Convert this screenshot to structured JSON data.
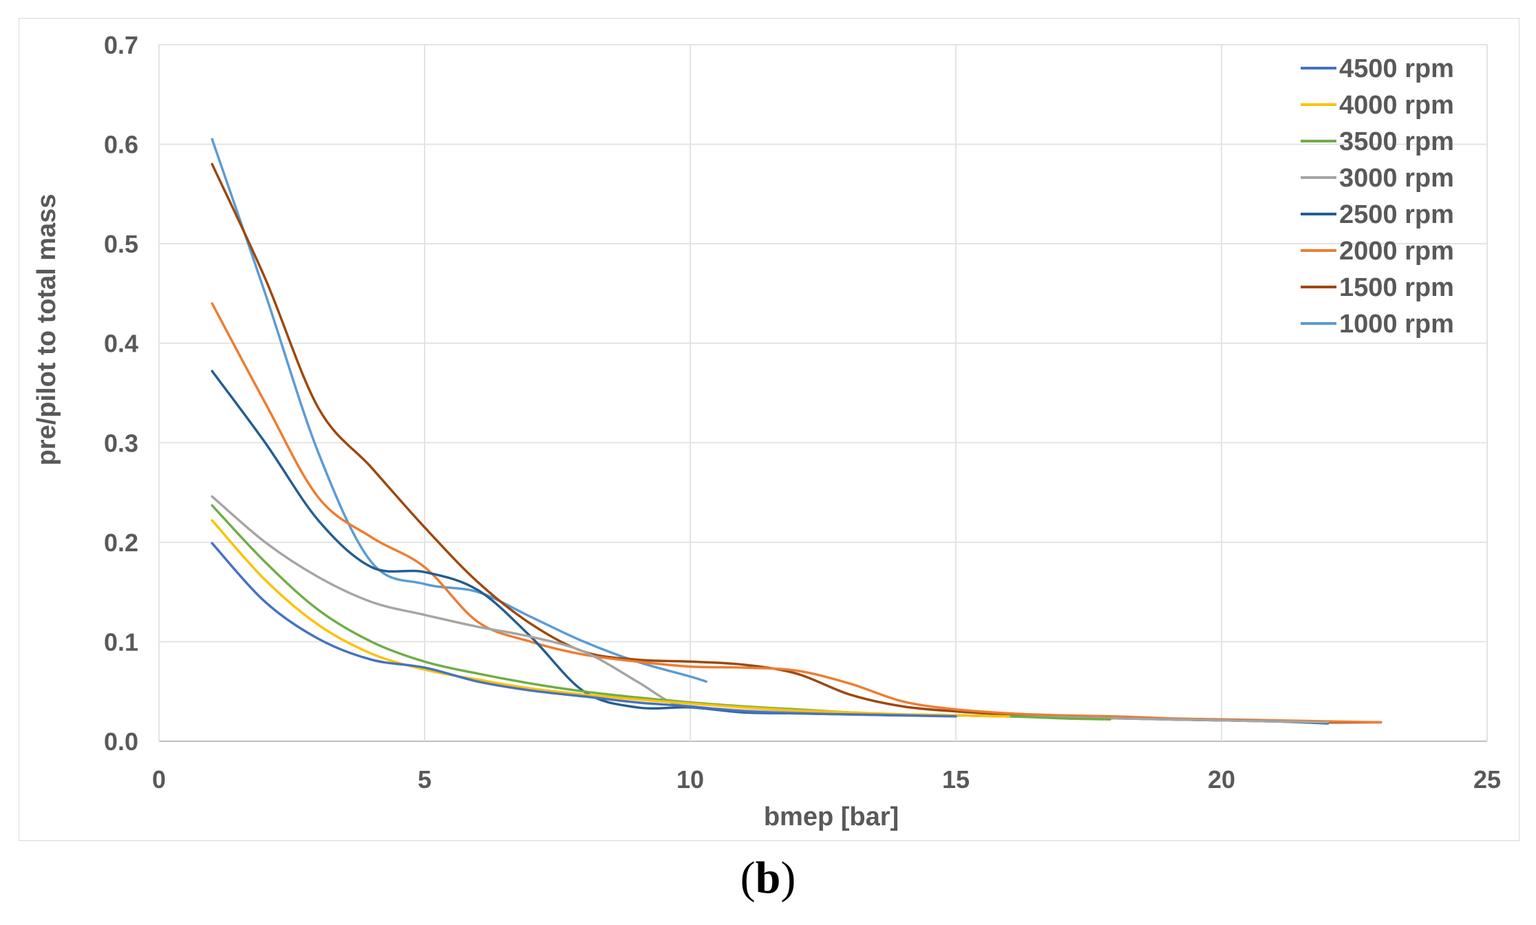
{
  "caption": {
    "open": "(",
    "letter": "b",
    "close": ")"
  },
  "chart_data": {
    "type": "line",
    "xlabel": "bmep [bar]",
    "ylabel": "pre/pilot to total mass",
    "xlim": [
      0,
      25
    ],
    "ylim": [
      0,
      0.7
    ],
    "xticks": [
      0,
      5,
      10,
      15,
      20,
      25
    ],
    "yticks": [
      "0.0",
      "0.1",
      "0.2",
      "0.3",
      "0.4",
      "0.5",
      "0.6",
      "0.7"
    ],
    "grid": true,
    "legend_position": "top-right",
    "series": [
      {
        "name": "4500 rpm",
        "color": "#4472c4",
        "points": [
          [
            1,
            0.199
          ],
          [
            2,
            0.14
          ],
          [
            3,
            0.103
          ],
          [
            4,
            0.082
          ],
          [
            5,
            0.074
          ],
          [
            6,
            0.06
          ],
          [
            7,
            0.051
          ],
          [
            8,
            0.045
          ],
          [
            9,
            0.039
          ],
          [
            10,
            0.035
          ],
          [
            11,
            0.03
          ],
          [
            12,
            0.028
          ],
          [
            13,
            0.027
          ],
          [
            14,
            0.026
          ],
          [
            15,
            0.025
          ]
        ]
      },
      {
        "name": "4000 rpm",
        "color": "#ffc000",
        "points": [
          [
            1,
            0.222
          ],
          [
            2,
            0.162
          ],
          [
            3,
            0.117
          ],
          [
            4,
            0.088
          ],
          [
            5,
            0.072
          ],
          [
            6,
            0.062
          ],
          [
            7,
            0.053
          ],
          [
            8,
            0.047
          ],
          [
            9,
            0.042
          ],
          [
            10,
            0.038
          ],
          [
            11,
            0.034
          ],
          [
            12,
            0.031
          ],
          [
            13,
            0.029
          ],
          [
            14,
            0.027
          ],
          [
            15,
            0.026
          ],
          [
            16,
            0.025
          ]
        ]
      },
      {
        "name": "3500 rpm",
        "color": "#70ad47",
        "points": [
          [
            1,
            0.237
          ],
          [
            2,
            0.18
          ],
          [
            3,
            0.132
          ],
          [
            4,
            0.1
          ],
          [
            5,
            0.08
          ],
          [
            6,
            0.068
          ],
          [
            7,
            0.058
          ],
          [
            8,
            0.05
          ],
          [
            9,
            0.044
          ],
          [
            10,
            0.039
          ],
          [
            11,
            0.035
          ],
          [
            12,
            0.032
          ],
          [
            13,
            0.029
          ],
          [
            14,
            0.027
          ],
          [
            15,
            0.026
          ],
          [
            16,
            0.025
          ],
          [
            17,
            0.023
          ],
          [
            17.9,
            0.022
          ]
        ]
      },
      {
        "name": "3000 rpm",
        "color": "#a5a5a5",
        "points": [
          [
            1,
            0.246
          ],
          [
            2,
            0.2
          ],
          [
            3,
            0.165
          ],
          [
            4,
            0.14
          ],
          [
            5,
            0.127
          ],
          [
            6,
            0.115
          ],
          [
            7,
            0.105
          ],
          [
            8,
            0.09
          ],
          [
            9,
            0.06
          ],
          [
            9.6,
            0.04
          ],
          [
            10,
            0.035
          ],
          [
            11,
            0.031
          ],
          [
            12,
            0.029
          ],
          [
            13,
            0.028
          ],
          [
            14,
            0.027
          ],
          [
            15,
            0.026
          ],
          [
            16,
            0.025
          ],
          [
            17,
            0.024
          ],
          [
            18,
            0.023
          ],
          [
            19,
            0.022
          ],
          [
            20,
            0.021
          ],
          [
            21,
            0.02
          ],
          [
            22,
            0.019
          ]
        ]
      },
      {
        "name": "2500 rpm",
        "color": "#255e91",
        "points": [
          [
            1,
            0.372
          ],
          [
            2,
            0.3
          ],
          [
            3,
            0.222
          ],
          [
            4,
            0.175
          ],
          [
            5,
            0.17
          ],
          [
            6,
            0.152
          ],
          [
            7,
            0.105
          ],
          [
            8,
            0.05
          ],
          [
            9,
            0.034
          ],
          [
            10,
            0.034
          ],
          [
            11,
            0.029
          ],
          [
            12,
            0.028
          ],
          [
            13,
            0.027
          ],
          [
            14,
            0.026
          ],
          [
            15,
            0.026
          ],
          [
            16,
            0.025
          ],
          [
            17,
            0.024
          ],
          [
            18,
            0.023
          ],
          [
            19,
            0.022
          ],
          [
            20,
            0.021
          ],
          [
            21,
            0.02
          ],
          [
            22,
            0.018
          ]
        ]
      },
      {
        "name": "2000 rpm",
        "color": "#ed7d31",
        "points": [
          [
            1,
            0.44
          ],
          [
            2,
            0.34
          ],
          [
            3,
            0.245
          ],
          [
            4,
            0.205
          ],
          [
            5,
            0.175
          ],
          [
            6,
            0.12
          ],
          [
            7,
            0.1
          ],
          [
            8,
            0.087
          ],
          [
            9,
            0.08
          ],
          [
            10,
            0.075
          ],
          [
            11,
            0.074
          ],
          [
            12,
            0.071
          ],
          [
            13,
            0.058
          ],
          [
            14,
            0.04
          ],
          [
            15,
            0.032
          ],
          [
            16,
            0.028
          ],
          [
            17,
            0.026
          ],
          [
            18,
            0.025
          ],
          [
            19,
            0.023
          ],
          [
            20,
            0.022
          ],
          [
            21,
            0.021
          ],
          [
            22,
            0.02
          ],
          [
            23,
            0.019
          ]
        ]
      },
      {
        "name": "1500 rpm",
        "color": "#9e480e",
        "points": [
          [
            1,
            0.58
          ],
          [
            2,
            0.465
          ],
          [
            3,
            0.335
          ],
          [
            4,
            0.275
          ],
          [
            5,
            0.215
          ],
          [
            6,
            0.16
          ],
          [
            7,
            0.118
          ],
          [
            8,
            0.09
          ],
          [
            9,
            0.082
          ],
          [
            10,
            0.08
          ],
          [
            11,
            0.077
          ],
          [
            12,
            0.068
          ],
          [
            13,
            0.047
          ],
          [
            14,
            0.035
          ],
          [
            15,
            0.03
          ],
          [
            16,
            0.027
          ],
          [
            17,
            0.025
          ],
          [
            18,
            0.024
          ],
          [
            19,
            0.022
          ],
          [
            20,
            0.021
          ],
          [
            21,
            0.02
          ],
          [
            22,
            0.019
          ],
          [
            23,
            0.019
          ]
        ]
      },
      {
        "name": "1000 rpm",
        "color": "#5b9bd5",
        "points": [
          [
            1,
            0.605
          ],
          [
            2,
            0.45
          ],
          [
            3,
            0.29
          ],
          [
            4,
            0.18
          ],
          [
            5,
            0.158
          ],
          [
            6,
            0.15
          ],
          [
            7,
            0.125
          ],
          [
            8,
            0.1
          ],
          [
            9,
            0.08
          ],
          [
            10,
            0.065
          ],
          [
            10.3,
            0.06
          ]
        ]
      }
    ]
  }
}
